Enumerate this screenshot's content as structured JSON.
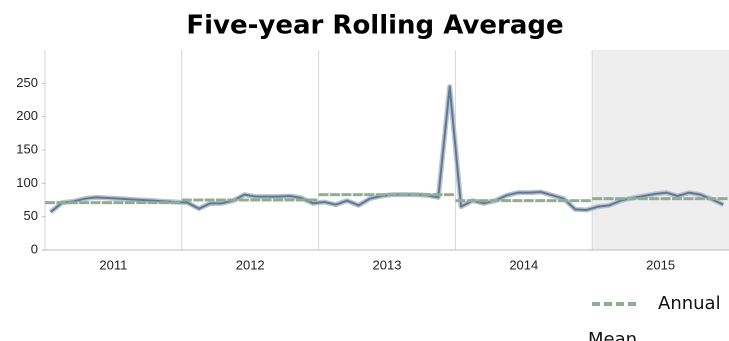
{
  "chart_data": {
    "type": "line",
    "title": "Five-year Rolling Average",
    "categories": [
      null,
      null,
      null,
      null,
      null,
      "2011",
      null,
      null,
      null,
      null,
      null,
      null,
      null,
      null,
      null,
      null,
      null,
      "2012",
      null,
      null,
      null,
      null,
      null,
      null,
      null,
      null,
      null,
      null,
      null,
      "2013",
      null,
      null,
      null,
      null,
      null,
      null,
      null,
      null,
      null,
      null,
      null,
      "2014",
      null,
      null,
      null,
      null,
      null,
      null,
      null,
      null,
      null,
      null,
      null,
      "2015",
      null,
      null,
      null,
      null,
      null,
      null
    ],
    "series": [
      {
        "color": "#627891",
        "values": [
          57,
          71,
          73,
          77,
          79,
          78,
          77,
          76,
          75,
          74,
          73,
          72,
          71,
          62,
          70,
          70,
          74,
          83,
          80,
          80,
          80,
          81,
          78,
          70,
          72,
          68,
          74,
          67,
          77,
          81,
          83,
          83,
          83,
          82,
          79,
          245,
          65,
          74,
          70,
          74,
          82,
          86,
          86,
          87,
          82,
          77,
          61,
          60,
          65,
          67,
          74,
          78,
          81,
          84,
          86,
          81,
          86,
          83,
          76,
          68
        ]
      },
      {
        "name": "Annual Mean",
        "color": "#8fae8f",
        "step": true,
        "values": [
          71,
          71,
          71,
          71,
          71,
          71,
          71,
          71,
          71,
          71,
          71,
          71,
          75,
          75,
          75,
          75,
          75,
          75,
          75,
          75,
          75,
          75,
          75,
          75,
          83,
          83,
          83,
          83,
          83,
          83,
          83,
          83,
          83,
          83,
          83,
          83,
          74,
          74,
          74,
          74,
          74,
          74,
          74,
          74,
          74,
          74,
          74,
          74,
          77,
          77,
          77,
          77,
          77,
          77,
          77,
          77,
          77,
          77,
          77,
          77
        ]
      }
    ],
    "ylim": [
      0,
      300
    ],
    "yticks": [
      0,
      50,
      100,
      150,
      200,
      250
    ],
    "shade_last_group": true
  }
}
